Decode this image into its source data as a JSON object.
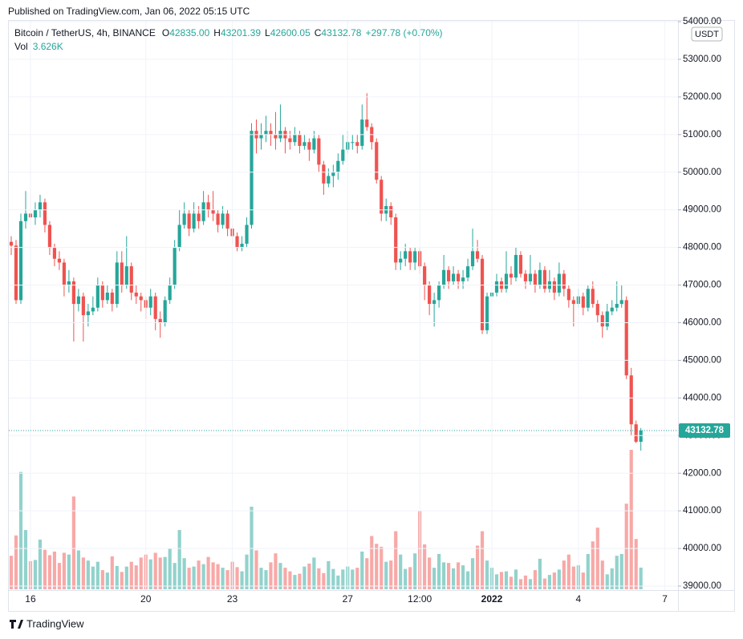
{
  "header": {
    "published": "Published on TradingView.com, Jan 06, 2022 05:15 UTC"
  },
  "footer": {
    "brand": "TradingView"
  },
  "chart_data": {
    "type": "candlestick",
    "symbol": "Bitcoin / TetherUS, 4h, BINANCE",
    "currency": "USDT",
    "legend": [
      {
        "label": "O",
        "value": "42835.00"
      },
      {
        "label": "H",
        "value": "43201.39"
      },
      {
        "label": "L",
        "value": "42600.05"
      },
      {
        "label": "C",
        "value": "43132.78"
      }
    ],
    "change": "+297.78 (+0.70%)",
    "volume_label": "Vol",
    "volume_value": "3.626K",
    "open": [
      48150,
      48050,
      46600,
      48700,
      48900,
      48800,
      49000,
      49200,
      48600,
      48000,
      47700,
      47600,
      47000,
      47100,
      46500,
      46700,
      46200,
      46300,
      46400,
      47000,
      46600,
      46800,
      46500,
      47600,
      47000,
      47500,
      46800,
      46700,
      46600,
      46400,
      46700,
      46100,
      46000,
      46600,
      47000,
      48000,
      48600,
      48900,
      48500,
      48900,
      48700,
      49200,
      49000,
      48900,
      48600,
      48900,
      48500,
      48300,
      48000,
      48100,
      48600,
      51100,
      50900,
      51000,
      51100,
      51000,
      50900,
      51100,
      50900,
      50800,
      51000,
      50700,
      50800,
      50600,
      50900,
      50200,
      49700,
      49900,
      50000,
      50300,
      50600,
      50800,
      50800,
      50700,
      51400,
      51200,
      50800,
      49800,
      48900,
      49100,
      48800,
      47600,
      47700,
      47900,
      47600,
      47900,
      47500,
      47000,
      46500,
      46600,
      47000,
      47400,
      47100,
      47300,
      47100,
      47200,
      47500,
      47900,
      47700,
      45800,
      46700,
      46800,
      47100,
      46900,
      47300,
      47200,
      47800,
      47300,
      47100,
      47300,
      47000,
      47400,
      46900,
      47100,
      46800,
      47300,
      46900,
      46600,
      46500,
      46700,
      46400,
      46900,
      46500,
      46200,
      45900,
      46300,
      46400,
      46500,
      46600,
      44600,
      43300,
      42835
    ],
    "high": [
      48300,
      48200,
      48900,
      49500,
      49400,
      49200,
      49400,
      49300,
      48700,
      48100,
      47900,
      47700,
      47400,
      47200,
      46900,
      46800,
      46500,
      46700,
      47200,
      47100,
      47000,
      46900,
      47900,
      47900,
      48300,
      47600,
      47000,
      46800,
      46700,
      46900,
      46800,
      46300,
      46700,
      47200,
      48200,
      49000,
      49200,
      49000,
      49200,
      49100,
      49500,
      49400,
      49500,
      49000,
      49100,
      49000,
      48600,
      48400,
      48300,
      48800,
      51300,
      51400,
      51300,
      51500,
      51300,
      51600,
      51800,
      51200,
      51100,
      51200,
      51100,
      51000,
      50900,
      51100,
      51000,
      50300,
      50100,
      50200,
      50500,
      51000,
      51100,
      51000,
      51000,
      51800,
      52100,
      51300,
      50900,
      49900,
      49300,
      49200,
      48900,
      47900,
      48100,
      48000,
      48000,
      48000,
      47600,
      47100,
      46800,
      47100,
      47800,
      47500,
      47500,
      47400,
      47400,
      47700,
      48500,
      48200,
      47800,
      46800,
      47000,
      47300,
      47200,
      47900,
      47500,
      48000,
      47900,
      47400,
      47800,
      47400,
      47600,
      47500,
      47400,
      47200,
      47600,
      47400,
      47000,
      46700,
      46900,
      46800,
      47000,
      47100,
      46600,
      46300,
      46500,
      46600,
      47100,
      47000,
      46700,
      44800,
      43400,
      43201.39
    ],
    "low": [
      47800,
      46500,
      46500,
      48500,
      48600,
      48600,
      48800,
      48400,
      47800,
      47500,
      47400,
      46700,
      46800,
      45500,
      46300,
      45500,
      45900,
      46200,
      46300,
      46400,
      46500,
      46300,
      46400,
      46800,
      46900,
      46600,
      46500,
      46300,
      46100,
      46200,
      45800,
      45600,
      45900,
      46500,
      46900,
      47900,
      48500,
      48300,
      48400,
      48500,
      48600,
      48800,
      48700,
      48400,
      48500,
      48300,
      48100,
      47900,
      47900,
      48000,
      48500,
      50500,
      50600,
      50800,
      50700,
      50600,
      50800,
      50500,
      50600,
      50700,
      50500,
      50600,
      50300,
      50500,
      50000,
      49400,
      49600,
      49600,
      49800,
      50200,
      50500,
      50600,
      50500,
      50600,
      51100,
      50600,
      49700,
      48700,
      48700,
      48600,
      47400,
      47400,
      47500,
      47400,
      47400,
      47300,
      46600,
      46200,
      45900,
      46400,
      46900,
      46900,
      47000,
      46900,
      46900,
      47100,
      47400,
      47600,
      45700,
      45700,
      46600,
      46700,
      46800,
      46800,
      47000,
      47100,
      47200,
      46900,
      47000,
      46800,
      46900,
      46800,
      46800,
      46600,
      46700,
      46700,
      46400,
      45900,
      46400,
      46200,
      46300,
      46400,
      46000,
      45600,
      45800,
      46200,
      46300,
      46400,
      44500,
      43000,
      42800,
      42600.05
    ],
    "close": [
      48050,
      46600,
      48700,
      48900,
      48800,
      49000,
      49200,
      48600,
      48000,
      47700,
      47600,
      47000,
      47100,
      46500,
      46700,
      46200,
      46300,
      46400,
      47000,
      46600,
      46800,
      46500,
      47600,
      47000,
      47500,
      46800,
      46700,
      46600,
      46400,
      46700,
      46100,
      46000,
      46600,
      47000,
      48000,
      48600,
      48900,
      48500,
      48900,
      48700,
      49200,
      49000,
      48900,
      48600,
      48900,
      48500,
      48300,
      48000,
      48100,
      48600,
      51100,
      50900,
      51000,
      51100,
      51000,
      50900,
      51100,
      50900,
      50800,
      51000,
      50700,
      50800,
      50600,
      50900,
      50200,
      49700,
      49900,
      50000,
      50300,
      50600,
      50800,
      50800,
      50700,
      51400,
      51200,
      50800,
      49800,
      48900,
      49100,
      48800,
      47600,
      47700,
      47900,
      47600,
      47900,
      47500,
      47000,
      46500,
      46600,
      47000,
      47400,
      47100,
      47300,
      47100,
      47200,
      47500,
      47900,
      47700,
      45800,
      46700,
      46800,
      47100,
      46900,
      47300,
      47200,
      47800,
      47300,
      47100,
      47300,
      47000,
      47400,
      46900,
      47100,
      46800,
      47300,
      46900,
      46600,
      46500,
      46700,
      46400,
      46900,
      46500,
      46200,
      45900,
      46300,
      46400,
      46500,
      46600,
      44600,
      43300,
      42835,
      43132.78
    ],
    "volume": [
      5600,
      9000,
      19600,
      9900,
      4700,
      4900,
      8300,
      6600,
      5700,
      6300,
      4400,
      6100,
      5800,
      15500,
      6500,
      5300,
      4800,
      3800,
      4600,
      3200,
      2800,
      5500,
      3900,
      2900,
      3800,
      4600,
      4000,
      5300,
      5800,
      5000,
      6100,
      5300,
      5400,
      6800,
      4400,
      9900,
      5200,
      3600,
      3800,
      4800,
      4200,
      5400,
      4500,
      4200,
      3600,
      3200,
      4600,
      3700,
      3000,
      5800,
      13800,
      6500,
      3600,
      3200,
      4500,
      6000,
      4400,
      3600,
      3000,
      2400,
      2600,
      3800,
      4300,
      5300,
      3500,
      2700,
      4700,
      3400,
      2300,
      3300,
      3800,
      3300,
      3600,
      6300,
      5200,
      8900,
      7600,
      7100,
      4600,
      4800,
      9700,
      5800,
      3400,
      3700,
      6000,
      13100,
      7500,
      5300,
      3600,
      5900,
      4500,
      4400,
      3500,
      4500,
      4000,
      3000,
      5200,
      7300,
      9700,
      4800,
      3600,
      2500,
      2900,
      3000,
      2100,
      3300,
      1700,
      2300,
      1700,
      3200,
      5100,
      1800,
      2400,
      2800,
      3300,
      4800,
      5800,
      3800,
      4000,
      2800,
      5900,
      8000,
      10300,
      4800,
      2500,
      3500,
      5600,
      5900,
      14300,
      23300,
      8400,
      3626
    ],
    "up_color": "#26a69a",
    "down_color": "#ef5350",
    "up_volume_color": "#92d2cc",
    "down_volume_color": "#f7a9a7",
    "ylim": [
      38915,
      54108
    ],
    "yticks": [
      {
        "value": 39000,
        "label": "39000.00"
      },
      {
        "value": 40000,
        "label": "40000.00"
      },
      {
        "value": 41000,
        "label": "41000.00"
      },
      {
        "value": 42000,
        "label": "42000.00"
      },
      {
        "value": 43000,
        "label": "43000.00"
      },
      {
        "value": 44000,
        "label": "44000.00"
      },
      {
        "value": 45000,
        "label": "45000.00"
      },
      {
        "value": 46000,
        "label": "46000.00"
      },
      {
        "value": 47000,
        "label": "47000.00"
      },
      {
        "value": 48000,
        "label": "48000.00"
      },
      {
        "value": 49000,
        "label": "49000.00"
      },
      {
        "value": 50000,
        "label": "50000.00"
      },
      {
        "value": 51000,
        "label": "51000.00"
      },
      {
        "value": 52000,
        "label": "52000.00"
      },
      {
        "value": 53000,
        "label": "53000.00"
      },
      {
        "value": 54000,
        "label": "54000.00"
      }
    ],
    "xlim": [
      -0.67,
      138.73
    ],
    "xticks": [
      {
        "value": 4,
        "label": "16"
      },
      {
        "value": 28,
        "label": "20"
      },
      {
        "value": 46,
        "label": "23"
      },
      {
        "value": 70,
        "label": "27"
      },
      {
        "value": 85,
        "label": "12:00"
      },
      {
        "value": 100,
        "label": "2022"
      },
      {
        "value": 118,
        "label": "4"
      },
      {
        "value": 136,
        "label": "7"
      }
    ],
    "grid": true
  }
}
